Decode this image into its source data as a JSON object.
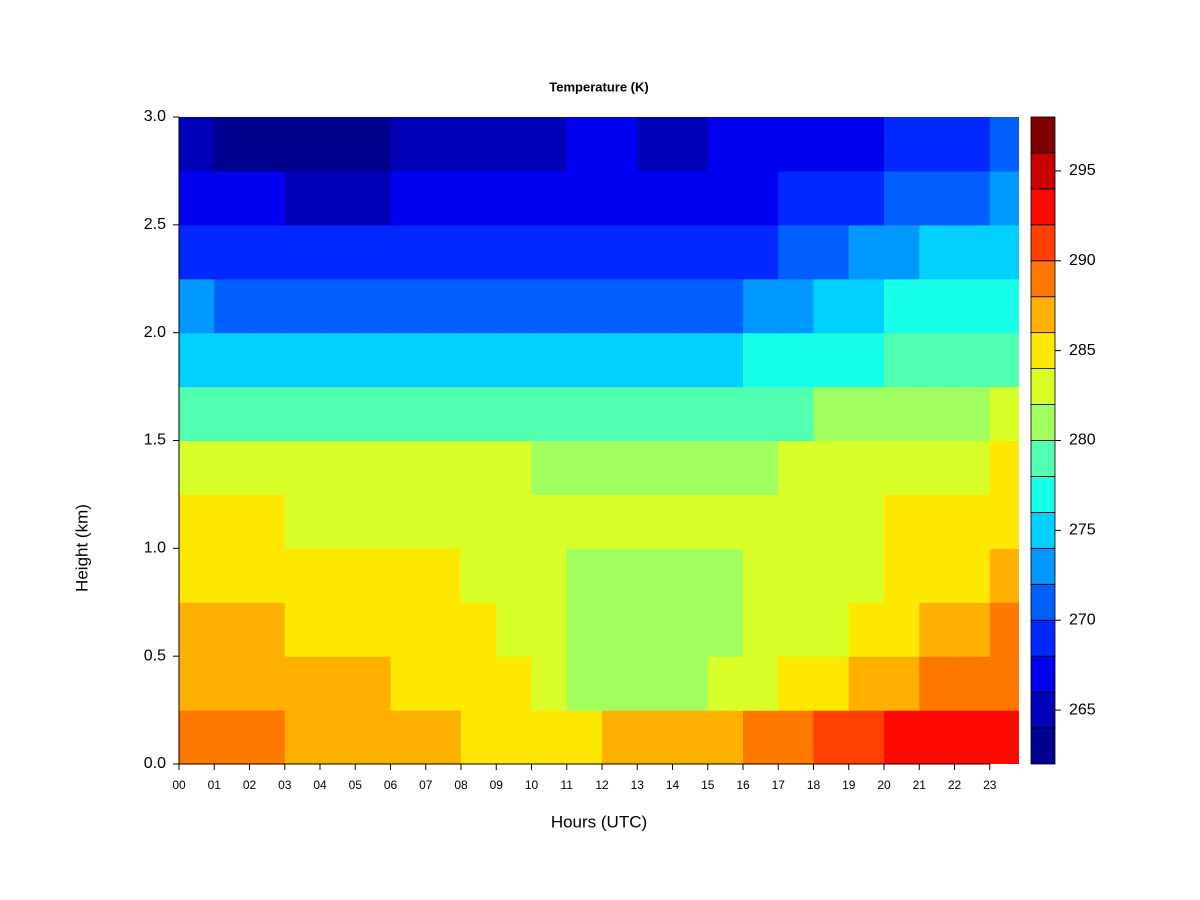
{
  "chart_data": {
    "type": "heatmap",
    "title": "Temperature (K)",
    "xlabel": "Hours (UTC)",
    "ylabel": "Height (km)",
    "x": [
      0.5,
      1.5,
      2.5,
      3.5,
      4.5,
      5.5,
      6.5,
      7.5,
      8.5,
      9.5,
      10.5,
      11.5,
      12.5,
      13.5,
      14.5,
      15.5,
      16.5,
      17.5,
      18.5,
      19.5,
      20.5,
      21.5,
      22.5,
      23.5
    ],
    "y": [
      0.125,
      0.375,
      0.625,
      0.875,
      1.125,
      1.375,
      1.625,
      1.875,
      2.125,
      2.375,
      2.625,
      2.875
    ],
    "z": [
      [
        288.5,
        288,
        288,
        287.5,
        287.5,
        287,
        286.5,
        286,
        285.5,
        285,
        285,
        285.5,
        286,
        286.5,
        287,
        287.5,
        288.5,
        289.5,
        290.5,
        291.5,
        292.5,
        293,
        293,
        292
      ],
      [
        287,
        287,
        287,
        286.5,
        286,
        286,
        285.5,
        285,
        284.5,
        284,
        283.5,
        281.5,
        281,
        281,
        281.5,
        282,
        283,
        284,
        285,
        286,
        287,
        288,
        289,
        289.5
      ],
      [
        286.5,
        286.5,
        286,
        285.5,
        285,
        285,
        285,
        284.5,
        284,
        283.5,
        283,
        281,
        281,
        281,
        281,
        281,
        282.5,
        283,
        283.5,
        284,
        285,
        286,
        287,
        288
      ],
      [
        285,
        285,
        285,
        285,
        285,
        284.5,
        284,
        284,
        283.5,
        283,
        283,
        281,
        281,
        281,
        281,
        281,
        282.5,
        283,
        283,
        283.5,
        284,
        284.5,
        285.5,
        286.5
      ],
      [
        284.5,
        284,
        284,
        283.5,
        283.5,
        283,
        283,
        283,
        283,
        283,
        282.5,
        282,
        282,
        282,
        282,
        282,
        282.5,
        283,
        283,
        283.5,
        284,
        284,
        284.5,
        285
      ],
      [
        283,
        283,
        282.5,
        282.5,
        282,
        282,
        282,
        282,
        282,
        282,
        281.5,
        281.5,
        281.5,
        281.5,
        281,
        281,
        281.5,
        282,
        282.5,
        283,
        283,
        283,
        283.5,
        284
      ],
      [
        279.5,
        279.5,
        279,
        279,
        279,
        279,
        279,
        279,
        279,
        279,
        279,
        279,
        279,
        278.5,
        278,
        278,
        279,
        279.5,
        280,
        280.5,
        281,
        281,
        281.5,
        282
      ],
      [
        275.5,
        275.5,
        275,
        275,
        275,
        275,
        275.5,
        275.5,
        275.5,
        275.5,
        275,
        275,
        275,
        275,
        274.5,
        274.5,
        276,
        276.5,
        277,
        277.5,
        278,
        278.5,
        279,
        279
      ],
      [
        272,
        271.5,
        271,
        271,
        271,
        271,
        271.5,
        271.5,
        271.5,
        271.5,
        271,
        270.5,
        270.5,
        270.5,
        270,
        270.5,
        272,
        273,
        274,
        275,
        276,
        276.5,
        277,
        277
      ],
      [
        269,
        268.5,
        268.5,
        268,
        268,
        268,
        268.5,
        269,
        269,
        269,
        269,
        268.5,
        268.5,
        268,
        268,
        268.5,
        269.5,
        270,
        271,
        272,
        273,
        274,
        274.5,
        275
      ],
      [
        266.5,
        266,
        266,
        265.5,
        265.5,
        265.5,
        266,
        266.5,
        266.5,
        267,
        267,
        267,
        266.5,
        266.5,
        266.5,
        266.5,
        267.5,
        268,
        268.5,
        269,
        270,
        271,
        271.5,
        272
      ],
      [
        264,
        263.5,
        263.5,
        263,
        263,
        263.5,
        264,
        264.5,
        265,
        265.5,
        265.5,
        266,
        266,
        265.5,
        265.5,
        266,
        266.5,
        267,
        267,
        267.5,
        268,
        269,
        269.5,
        270
      ]
    ],
    "xlim": [
      0,
      23.83
    ],
    "ylim": [
      0,
      3
    ],
    "xticks": [
      {
        "value": 0,
        "label": "00"
      },
      {
        "value": 1,
        "label": "01"
      },
      {
        "value": 2,
        "label": "02"
      },
      {
        "value": 3,
        "label": "03"
      },
      {
        "value": 4,
        "label": "04"
      },
      {
        "value": 5,
        "label": "05"
      },
      {
        "value": 6,
        "label": "06"
      },
      {
        "value": 7,
        "label": "07"
      },
      {
        "value": 8,
        "label": "08"
      },
      {
        "value": 9,
        "label": "09"
      },
      {
        "value": 10,
        "label": "10"
      },
      {
        "value": 11,
        "label": "11"
      },
      {
        "value": 12,
        "label": "12"
      },
      {
        "value": 13,
        "label": "13"
      },
      {
        "value": 14,
        "label": "14"
      },
      {
        "value": 15,
        "label": "15"
      },
      {
        "value": 16,
        "label": "16"
      },
      {
        "value": 17,
        "label": "17"
      },
      {
        "value": 18,
        "label": "18"
      },
      {
        "value": 19,
        "label": "19"
      },
      {
        "value": 20,
        "label": "20"
      },
      {
        "value": 21,
        "label": "21"
      },
      {
        "value": 22,
        "label": "22"
      },
      {
        "value": 23,
        "label": "23"
      }
    ],
    "yticks": [
      {
        "value": 0,
        "label": "0.0"
      },
      0.5,
      {
        "value": 1,
        "label": "1.0"
      },
      1.5,
      {
        "value": 2,
        "label": "2.0"
      },
      2.5,
      {
        "value": 3,
        "label": "3.0"
      }
    ],
    "levels": [
      262,
      264,
      266,
      268,
      270,
      272,
      274,
      276,
      278,
      280,
      282,
      284,
      286,
      288,
      290,
      292,
      294,
      296,
      298
    ],
    "colors": [
      "#00008f",
      "#0000b8",
      "#0000f0",
      "#0028ff",
      "#0060ff",
      "#0098ff",
      "#00d0ff",
      "#18ffe8",
      "#50ffb0",
      "#a0ff5f",
      "#d8ff28",
      "#ffe800",
      "#ffb000",
      "#ff7800",
      "#ff4000",
      "#ff0800",
      "#c80000",
      "#800000"
    ],
    "cbar_ticks": [
      265,
      270,
      275,
      280,
      285,
      290,
      295
    ]
  }
}
